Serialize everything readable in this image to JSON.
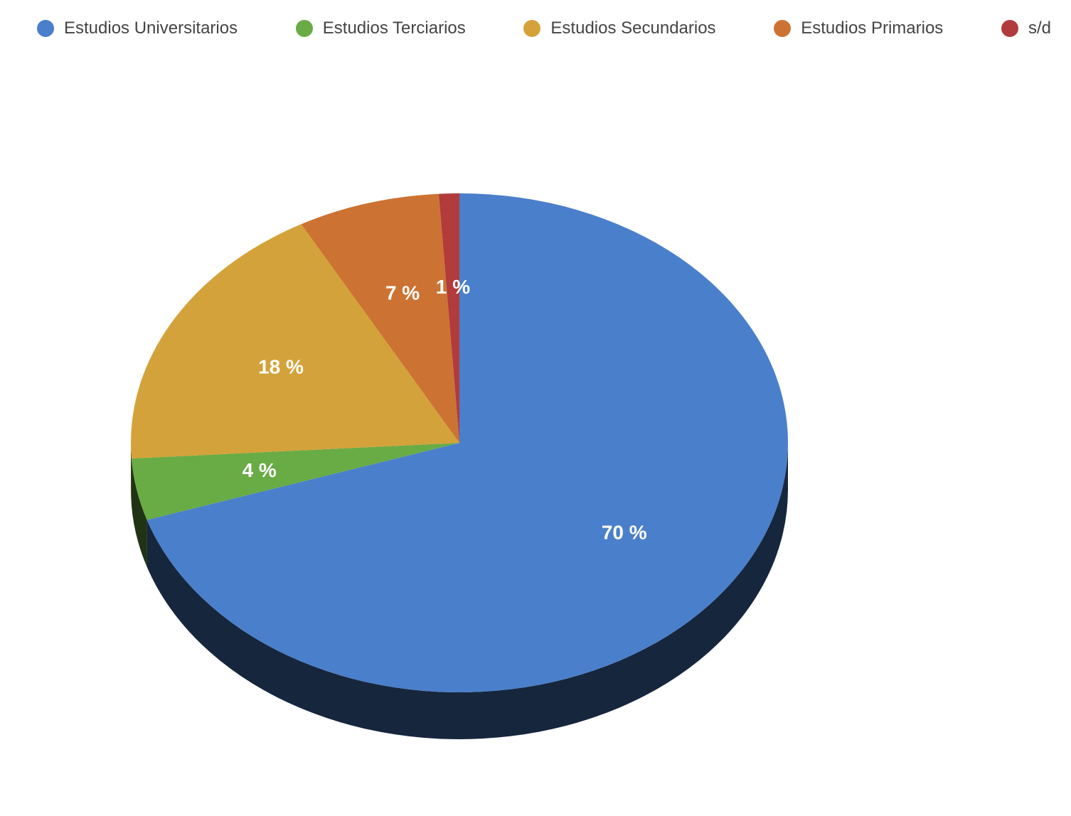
{
  "chart_data": {
    "type": "pie",
    "categories": [
      "Estudios Universitarios",
      "Estudios Terciarios",
      "Estudios Secundarios",
      "Estudios Primarios",
      "s/d"
    ],
    "values": [
      70,
      4,
      18,
      7,
      1
    ],
    "value_labels": [
      "70 %",
      "4 %",
      "18 %",
      "7 %",
      "1 %"
    ],
    "colors": [
      "#4a7fcb",
      "#69ab45",
      "#d4a23a",
      "#cc7333",
      "#b23b3b"
    ],
    "legend": "top"
  }
}
